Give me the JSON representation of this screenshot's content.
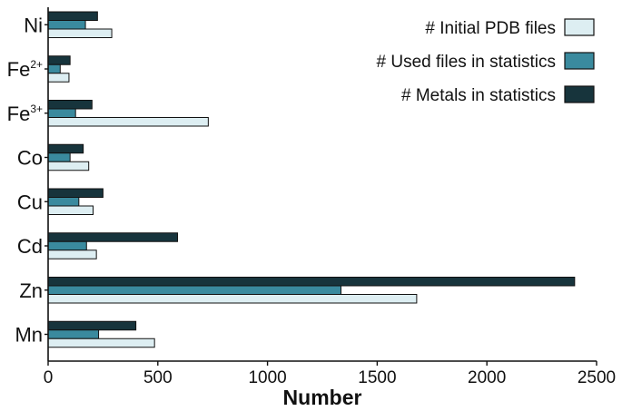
{
  "chart_data": {
    "type": "bar",
    "orientation": "horizontal",
    "xlabel": "Number",
    "xlim": [
      0,
      2500
    ],
    "xticks": [
      "0",
      "500",
      "1000",
      "1500",
      "2000",
      "2500"
    ],
    "categories": [
      {
        "base": "Ni",
        "sup": ""
      },
      {
        "base": "Fe",
        "sup": "2+"
      },
      {
        "base": "Fe",
        "sup": "3+"
      },
      {
        "base": "Co",
        "sup": ""
      },
      {
        "base": "Cu",
        "sup": ""
      },
      {
        "base": "Cd",
        "sup": ""
      },
      {
        "base": "Zn",
        "sup": ""
      },
      {
        "base": "Mn",
        "sup": ""
      }
    ],
    "series": [
      {
        "name": "# Initial PDB files",
        "color": "#ddeef2",
        "values": [
          290,
          95,
          730,
          185,
          205,
          220,
          1680,
          485
        ]
      },
      {
        "name": "# Used files in statistics",
        "color": "#3a8a9e",
        "values": [
          170,
          55,
          125,
          100,
          140,
          175,
          1335,
          230
        ]
      },
      {
        "name": "# Metals in statistics",
        "color": "#17343c",
        "values": [
          225,
          100,
          200,
          160,
          250,
          590,
          2400,
          400
        ]
      }
    ],
    "legend_position": "top-right",
    "grid": false
  }
}
